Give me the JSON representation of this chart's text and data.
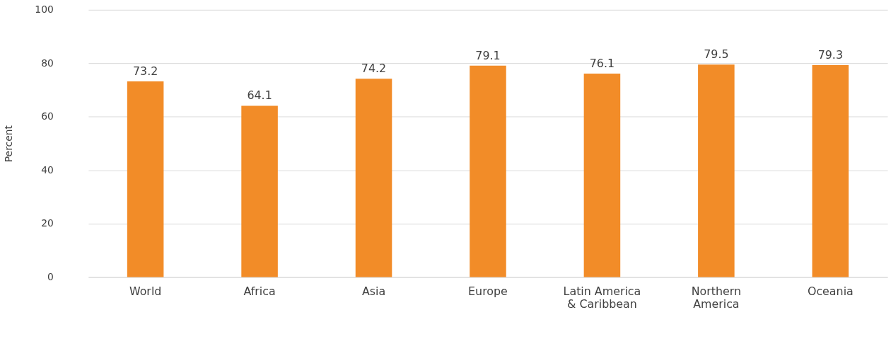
{
  "chart_data": {
    "type": "bar",
    "ylabel": "Percent",
    "categories": [
      "World",
      "Africa",
      "Asia",
      "Europe",
      "Latin America & Caribbean",
      "Northern America",
      "Oceania"
    ],
    "values": [
      73.2,
      64.1,
      74.2,
      79.1,
      76.1,
      79.5,
      79.3
    ],
    "color": "#f28c28",
    "ylim": [
      0,
      100
    ],
    "yticks": [
      0,
      20,
      40,
      60,
      80,
      100
    ],
    "grid": "y",
    "data_labels": true
  }
}
